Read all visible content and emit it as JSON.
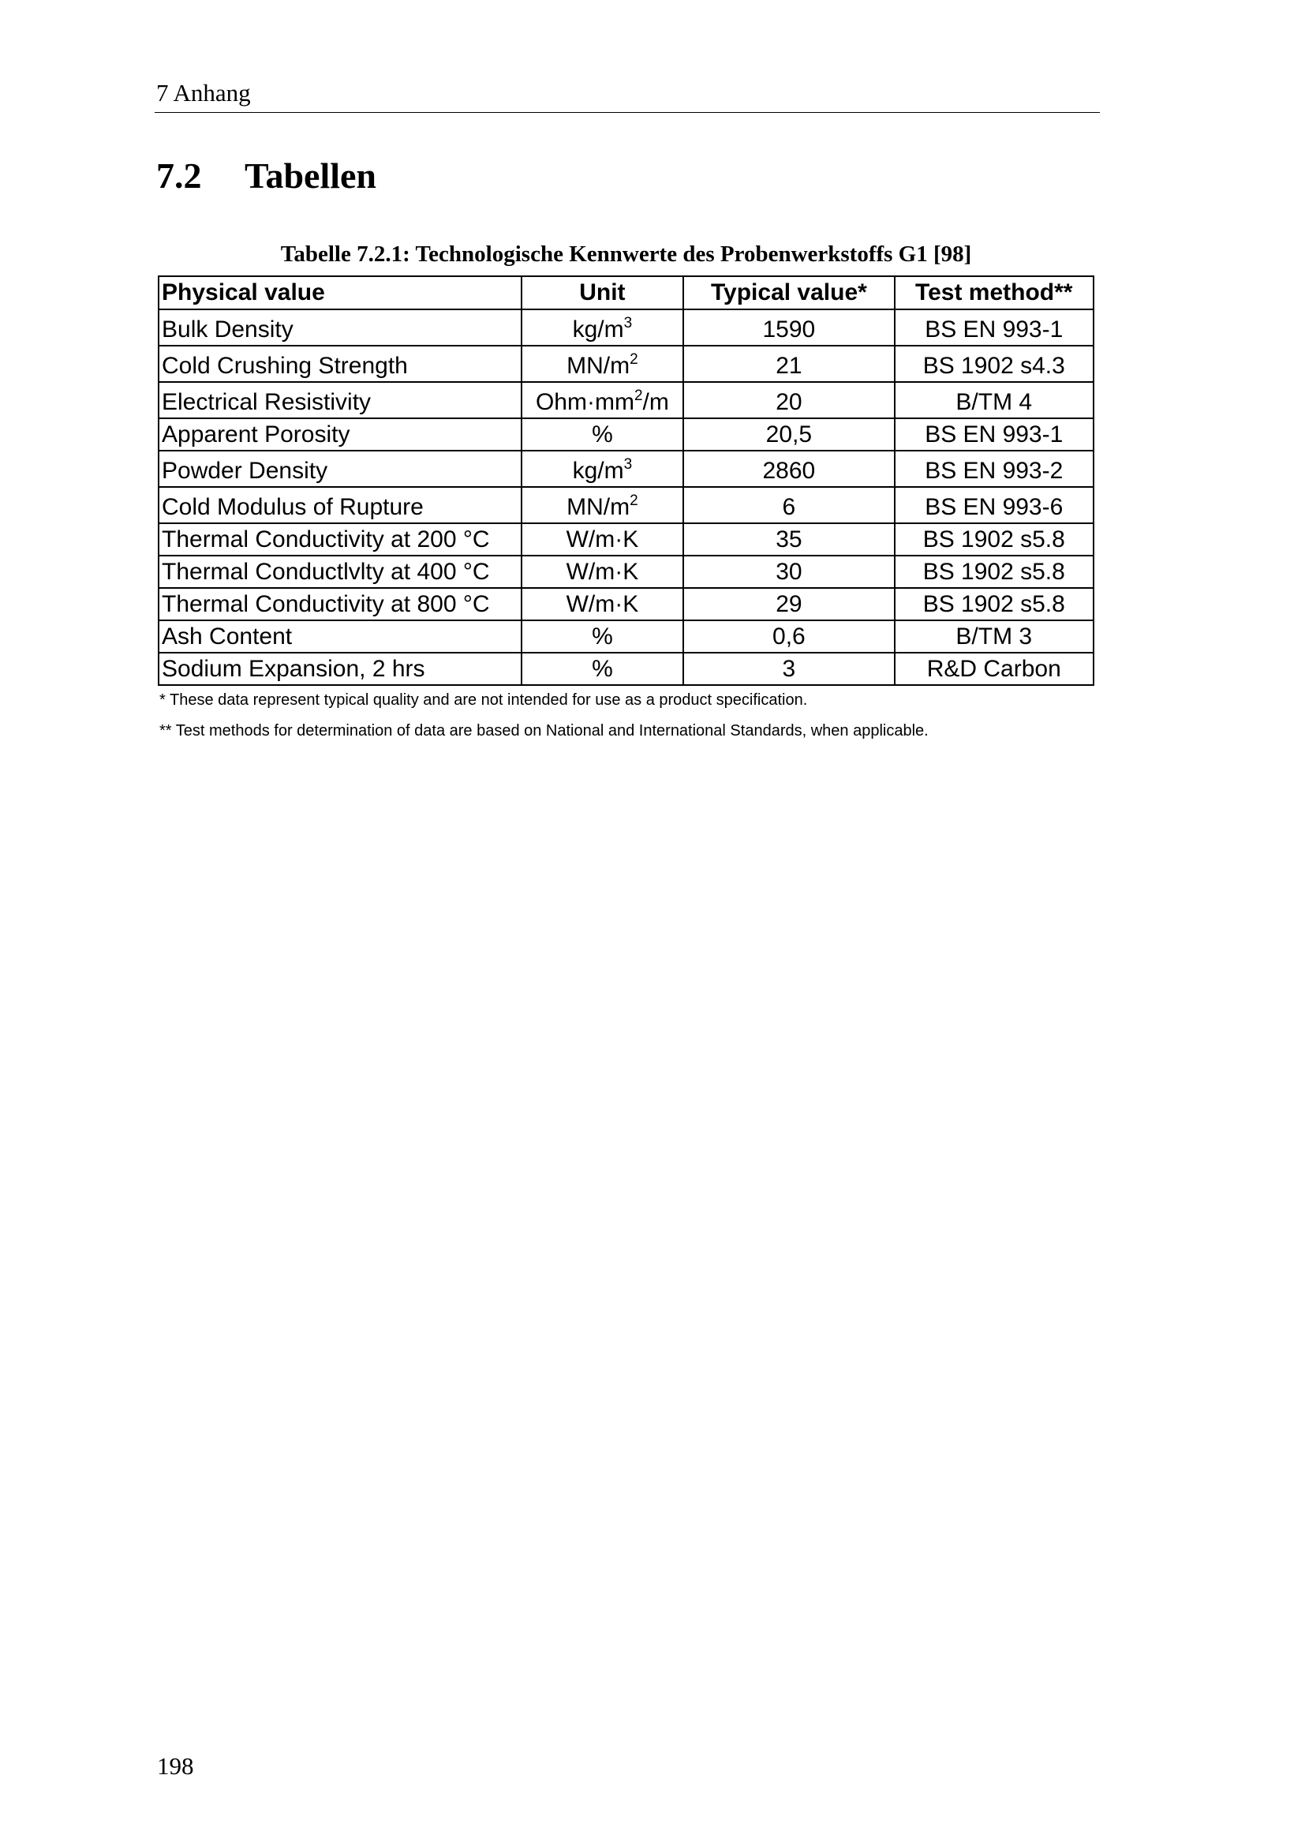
{
  "running_head": "7 Anhang",
  "section": {
    "number": "7.2",
    "title": "Tabellen"
  },
  "table": {
    "caption": "Tabelle 7.2.1: Technologische Kennwerte des Probenwerkstoffs G1 [98]",
    "headers": [
      "Physical value",
      "Unit",
      "Typical value*",
      "Test method**"
    ],
    "rows": [
      {
        "property": "Bulk Density",
        "unit": "kg/m",
        "unit_sup": "3",
        "unit_after": "",
        "value": "1590",
        "method": "BS EN 993-1"
      },
      {
        "property": "Cold Crushing Strength",
        "unit": "MN/m",
        "unit_sup": "2",
        "unit_after": "",
        "value": "21",
        "method": "BS 1902 s4.3"
      },
      {
        "property": "Electrical Resistivity",
        "unit": "Ohm·mm",
        "unit_sup": "2",
        "unit_after": "/m",
        "value": "20",
        "method": "B/TM 4"
      },
      {
        "property": "Apparent Porosity",
        "unit": "%",
        "unit_sup": "",
        "unit_after": "",
        "value": "20,5",
        "method": "BS EN 993-1"
      },
      {
        "property": "Powder Density",
        "unit": "kg/m",
        "unit_sup": "3",
        "unit_after": "",
        "value": "2860",
        "method": "BS EN 993-2"
      },
      {
        "property": "Cold Modulus of Rupture",
        "unit": "MN/m",
        "unit_sup": "2",
        "unit_after": "",
        "value": "6",
        "method": "BS EN 993-6"
      },
      {
        "property": "Thermal Conductivity at 200 °C",
        "unit": "W/m·K",
        "unit_sup": "",
        "unit_after": "",
        "value": "35",
        "method": "BS 1902 s5.8"
      },
      {
        "property": "Thermal Conductlvlty at 400 °C",
        "unit": "W/m·K",
        "unit_sup": "",
        "unit_after": "",
        "value": "30",
        "method": "BS 1902 s5.8"
      },
      {
        "property": "Thermal Conductivity at 800 °C",
        "unit": "W/m·K",
        "unit_sup": "",
        "unit_after": "",
        "value": "29",
        "method": "BS 1902 s5.8"
      },
      {
        "property": "Ash Content",
        "unit": "%",
        "unit_sup": "",
        "unit_after": "",
        "value": "0,6",
        "method": "B/TM 3"
      },
      {
        "property": "Sodium Expansion, 2 hrs",
        "unit": "%",
        "unit_sup": "",
        "unit_after": "",
        "value": "3",
        "method": "R&D Carbon"
      }
    ],
    "footnotes": [
      "* These data represent typical quality and are not intended for use as a product specification.",
      "** Test methods for determination of data are based on National and International Standards, when applicable."
    ]
  },
  "page_number": "198"
}
